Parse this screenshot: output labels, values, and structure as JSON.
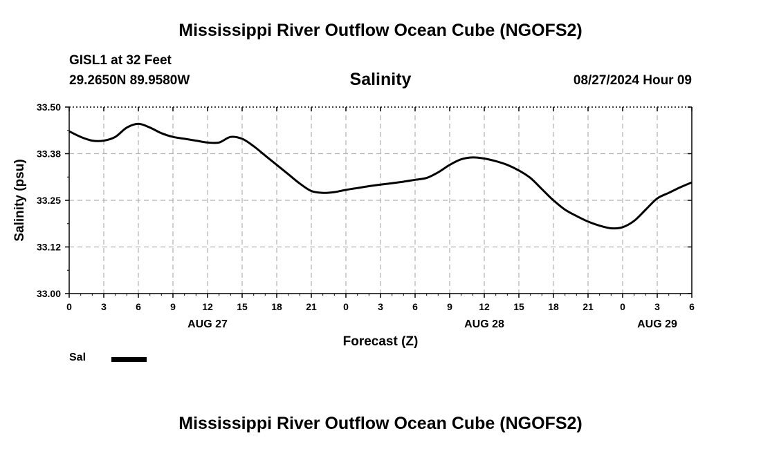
{
  "header": {
    "title": "Mississippi River Outflow Ocean Cube (NGOFS2)",
    "station": "GISL1 at 32 Feet",
    "coords": "29.2650N  89.9580W",
    "datetime": "08/27/2024 Hour 09"
  },
  "footer": {
    "title": "Mississippi River Outflow Ocean Cube (NGOFS2)"
  },
  "legend": {
    "label": "Sal"
  },
  "chart_data": {
    "type": "line",
    "title": "Salinity",
    "xlabel": "Forecast (Z)",
    "ylabel": "Salinity (psu)",
    "ylim": [
      33.0,
      33.5
    ],
    "xlim": [
      0,
      54
    ],
    "y_ticks": [
      "33.00",
      "33.12",
      "33.25",
      "33.38",
      "33.50"
    ],
    "y_tick_values": [
      33.0,
      33.125,
      33.25,
      33.375,
      33.5
    ],
    "x_ticks": [
      "0",
      "3",
      "6",
      "9",
      "12",
      "15",
      "18",
      "21",
      "0",
      "3",
      "6",
      "9",
      "12",
      "15",
      "18",
      "21",
      "0",
      "3",
      "6"
    ],
    "x_tick_values": [
      0,
      3,
      6,
      9,
      12,
      15,
      18,
      21,
      24,
      27,
      30,
      33,
      36,
      39,
      42,
      45,
      48,
      51,
      54
    ],
    "date_labels": [
      {
        "text": "AUG 27",
        "x": 12
      },
      {
        "text": "AUG 28",
        "x": 36
      },
      {
        "text": "AUG 29",
        "x": 51
      }
    ],
    "grid": true,
    "series": [
      {
        "name": "Sal",
        "x": [
          0,
          1,
          2,
          3,
          4,
          5,
          6,
          7,
          8,
          9,
          10,
          11,
          12,
          13,
          14,
          15,
          16,
          17,
          18,
          19,
          20,
          21,
          22,
          23,
          24,
          25,
          26,
          27,
          28,
          29,
          30,
          31,
          32,
          33,
          34,
          35,
          36,
          37,
          38,
          39,
          40,
          41,
          42,
          43,
          44,
          45,
          46,
          47,
          48,
          49,
          50,
          51,
          52,
          53,
          54
        ],
        "values": [
          33.435,
          33.42,
          33.41,
          33.41,
          33.42,
          33.445,
          33.455,
          33.445,
          33.43,
          33.42,
          33.415,
          33.41,
          33.405,
          33.405,
          33.42,
          33.415,
          33.395,
          33.37,
          33.345,
          33.32,
          33.295,
          33.275,
          33.27,
          33.272,
          33.278,
          33.283,
          33.288,
          33.292,
          33.296,
          33.3,
          33.305,
          33.31,
          33.325,
          33.345,
          33.36,
          33.365,
          33.362,
          33.355,
          33.345,
          33.33,
          33.31,
          33.28,
          33.25,
          33.225,
          33.208,
          33.193,
          33.182,
          33.175,
          33.178,
          33.195,
          33.225,
          33.255,
          33.27,
          33.285,
          33.298
        ]
      }
    ]
  }
}
